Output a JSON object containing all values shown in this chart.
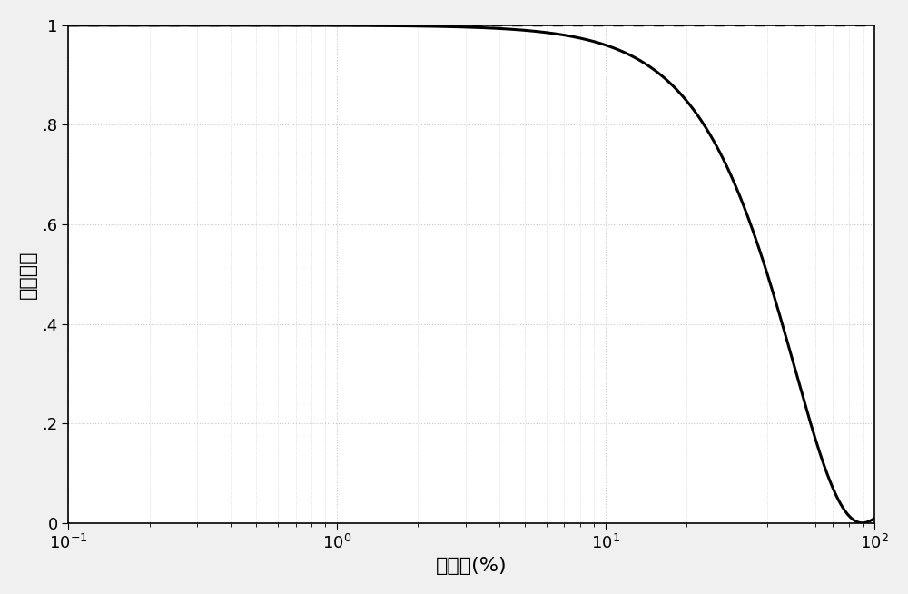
{
  "title": "",
  "xlabel": "应变値(%)",
  "ylabel": "相关系数",
  "xmin": 0.1,
  "xmax": 100,
  "ymin": 0,
  "ymax": 1.0,
  "background_color": "#ffffff",
  "curve_color": "#000000",
  "dotted_color": "#000000",
  "curve_linewidth": 2.2,
  "dotted_linewidth": 2.0,
  "xlabel_fontsize": 16,
  "ylabel_fontsize": 16,
  "tick_fontsize": 13,
  "e_decorr": 90.0,
  "yticks": [
    0,
    0.2,
    0.4,
    0.6,
    0.8,
    1.0
  ],
  "grid_color": "#c8c8c8",
  "fig_facecolor": "#f0f0f0",
  "axes_facecolor": "#ffffff"
}
